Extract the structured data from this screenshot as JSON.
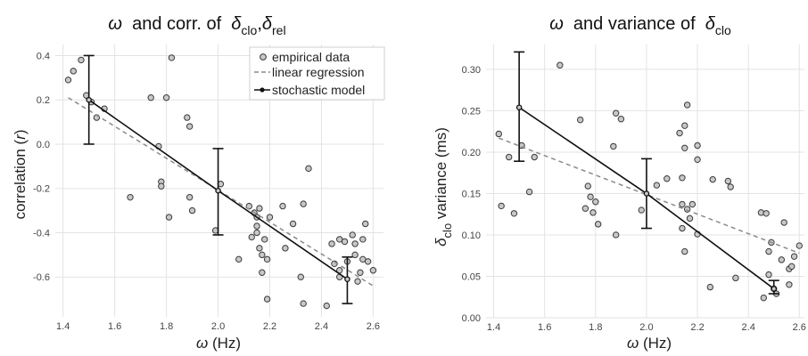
{
  "colors": {
    "point_fill": "#c8c8c8",
    "point_stroke": "#3a3a3a",
    "regression": "#8a8a8a",
    "model": "#111111",
    "grid": "#e3e3e3",
    "background": "#ffffff"
  },
  "chart_data": [
    {
      "type": "scatter",
      "title": {
        "greek": "ω",
        "text": "and corr. of",
        "sym": "δ",
        "sub1": "clo",
        "sep": ",",
        "sub2": "rel"
      },
      "xlabel": {
        "greek": "ω",
        "unit": "(Hz)"
      },
      "ylabel": {
        "text": "correlation",
        "var": "r"
      },
      "xlim": [
        1.37,
        2.64
      ],
      "ylim": [
        -0.78,
        0.45
      ],
      "xticks": [
        "1.4",
        "1.6",
        "1.8",
        "2.0",
        "2.2",
        "2.4",
        "2.6"
      ],
      "yticks": [
        "-0.6",
        "-0.4",
        "-0.2",
        "0.0",
        "0.2",
        "0.4"
      ],
      "grid": true,
      "legend": {
        "position": "top-right",
        "entries": [
          "empirical data",
          "linear regression",
          "stochastic model"
        ]
      },
      "series": [
        {
          "name": "empirical data",
          "type": "scatter",
          "points": [
            [
              1.42,
              0.29
            ],
            [
              1.44,
              0.33
            ],
            [
              1.47,
              0.38
            ],
            [
              1.49,
              0.22
            ],
            [
              1.51,
              0.19
            ],
            [
              1.53,
              0.12
            ],
            [
              1.56,
              0.16
            ],
            [
              1.66,
              -0.24
            ],
            [
              1.74,
              0.21
            ],
            [
              1.77,
              -0.01
            ],
            [
              1.78,
              -0.17
            ],
            [
              1.78,
              -0.19
            ],
            [
              1.8,
              0.21
            ],
            [
              1.81,
              -0.33
            ],
            [
              1.82,
              0.39
            ],
            [
              1.88,
              0.12
            ],
            [
              1.89,
              0.08
            ],
            [
              1.89,
              -0.24
            ],
            [
              1.9,
              -0.3
            ],
            [
              1.99,
              -0.39
            ],
            [
              2.01,
              -0.18
            ],
            [
              2.08,
              -0.52
            ],
            [
              2.12,
              -0.28
            ],
            [
              2.13,
              -0.42
            ],
            [
              2.14,
              -0.31
            ],
            [
              2.15,
              -0.33
            ],
            [
              2.15,
              -0.37
            ],
            [
              2.15,
              -0.4
            ],
            [
              2.16,
              -0.29
            ],
            [
              2.16,
              -0.47
            ],
            [
              2.17,
              -0.5
            ],
            [
              2.17,
              -0.58
            ],
            [
              2.18,
              -0.43
            ],
            [
              2.19,
              -0.52
            ],
            [
              2.19,
              -0.7
            ],
            [
              2.2,
              -0.33
            ],
            [
              2.25,
              -0.28
            ],
            [
              2.26,
              -0.47
            ],
            [
              2.29,
              -0.36
            ],
            [
              2.32,
              -0.6
            ],
            [
              2.33,
              -0.72
            ],
            [
              2.33,
              -0.27
            ],
            [
              2.35,
              -0.11
            ],
            [
              2.42,
              -0.73
            ],
            [
              2.44,
              -0.45
            ],
            [
              2.45,
              -0.54
            ],
            [
              2.47,
              -0.43
            ],
            [
              2.47,
              -0.57
            ],
            [
              2.47,
              -0.6
            ],
            [
              2.49,
              -0.44
            ],
            [
              2.5,
              -0.53
            ],
            [
              2.52,
              -0.41
            ],
            [
              2.53,
              -0.45
            ],
            [
              2.53,
              -0.5
            ],
            [
              2.54,
              -0.62
            ],
            [
              2.55,
              -0.58
            ],
            [
              2.56,
              -0.43
            ],
            [
              2.56,
              -0.52
            ],
            [
              2.57,
              -0.36
            ],
            [
              2.58,
              -0.53
            ],
            [
              2.6,
              -0.57
            ]
          ]
        },
        {
          "name": "linear regression",
          "type": "line",
          "dashed": true,
          "points": [
            [
              1.42,
              0.21
            ],
            [
              2.6,
              -0.64
            ]
          ]
        },
        {
          "name": "stochastic model",
          "type": "line-errorbar",
          "points": [
            [
              1.5,
              0.2
            ],
            [
              2.0,
              -0.21
            ],
            [
              2.5,
              -0.61
            ]
          ],
          "errors": [
            [
              0.0,
              0.4
            ],
            [
              -0.41,
              -0.02
            ],
            [
              -0.72,
              -0.51
            ]
          ]
        }
      ]
    },
    {
      "type": "scatter",
      "title": {
        "greek": "ω",
        "text": "and variance of",
        "sym": "δ",
        "sub1": "clo"
      },
      "xlabel": {
        "greek": "ω",
        "unit": "(Hz)"
      },
      "ylabel": {
        "sym": "δ",
        "sub": "clo",
        "text": "variance (ms)"
      },
      "xlim": [
        1.37,
        2.62
      ],
      "ylim": [
        0.0,
        0.33
      ],
      "xticks": [
        "1.4",
        "1.6",
        "1.8",
        "2.0",
        "2.2",
        "2.4",
        "2.6"
      ],
      "yticks": [
        "0.00",
        "0.05",
        "0.10",
        "0.15",
        "0.20",
        "0.25",
        "0.30"
      ],
      "grid": true,
      "series": [
        {
          "name": "empirical data",
          "type": "scatter",
          "points": [
            [
              1.42,
              0.222
            ],
            [
              1.43,
              0.135
            ],
            [
              1.46,
              0.194
            ],
            [
              1.48,
              0.126
            ],
            [
              1.51,
              0.208
            ],
            [
              1.54,
              0.152
            ],
            [
              1.56,
              0.194
            ],
            [
              1.66,
              0.305
            ],
            [
              1.74,
              0.239
            ],
            [
              1.76,
              0.132
            ],
            [
              1.77,
              0.159
            ],
            [
              1.78,
              0.146
            ],
            [
              1.79,
              0.127
            ],
            [
              1.8,
              0.14
            ],
            [
              1.81,
              0.113
            ],
            [
              1.87,
              0.207
            ],
            [
              1.88,
              0.247
            ],
            [
              1.88,
              0.1
            ],
            [
              1.9,
              0.24
            ],
            [
              1.98,
              0.13
            ],
            [
              2.04,
              0.16
            ],
            [
              2.08,
              0.168
            ],
            [
              2.13,
              0.223
            ],
            [
              2.14,
              0.169
            ],
            [
              2.14,
              0.137
            ],
            [
              2.14,
              0.108
            ],
            [
              2.15,
              0.205
            ],
            [
              2.15,
              0.232
            ],
            [
              2.15,
              0.08
            ],
            [
              2.16,
              0.257
            ],
            [
              2.16,
              0.131
            ],
            [
              2.17,
              0.12
            ],
            [
              2.18,
              0.137
            ],
            [
              2.2,
              0.208
            ],
            [
              2.2,
              0.191
            ],
            [
              2.2,
              0.101
            ],
            [
              2.25,
              0.037
            ],
            [
              2.26,
              0.167
            ],
            [
              2.32,
              0.165
            ],
            [
              2.33,
              0.158
            ],
            [
              2.35,
              0.048
            ],
            [
              2.45,
              0.127
            ],
            [
              2.46,
              0.024
            ],
            [
              2.47,
              0.126
            ],
            [
              2.48,
              0.08
            ],
            [
              2.48,
              0.052
            ],
            [
              2.49,
              0.091
            ],
            [
              2.5,
              0.035
            ],
            [
              2.51,
              0.029
            ],
            [
              2.53,
              0.07
            ],
            [
              2.54,
              0.115
            ],
            [
              2.56,
              0.04
            ],
            [
              2.56,
              0.059
            ],
            [
              2.57,
              0.062
            ],
            [
              2.58,
              0.074
            ],
            [
              2.6,
              0.087
            ]
          ]
        },
        {
          "name": "linear regression",
          "type": "line",
          "dashed": true,
          "points": [
            [
              1.42,
              0.217
            ],
            [
              2.6,
              0.078
            ]
          ]
        },
        {
          "name": "stochastic model",
          "type": "line-errorbar",
          "points": [
            [
              1.5,
              0.254
            ],
            [
              2.0,
              0.15
            ],
            [
              2.5,
              0.035
            ]
          ],
          "errors": [
            [
              0.189,
              0.321
            ],
            [
              0.108,
              0.192
            ],
            [
              0.029,
              0.045
            ]
          ]
        }
      ]
    }
  ]
}
